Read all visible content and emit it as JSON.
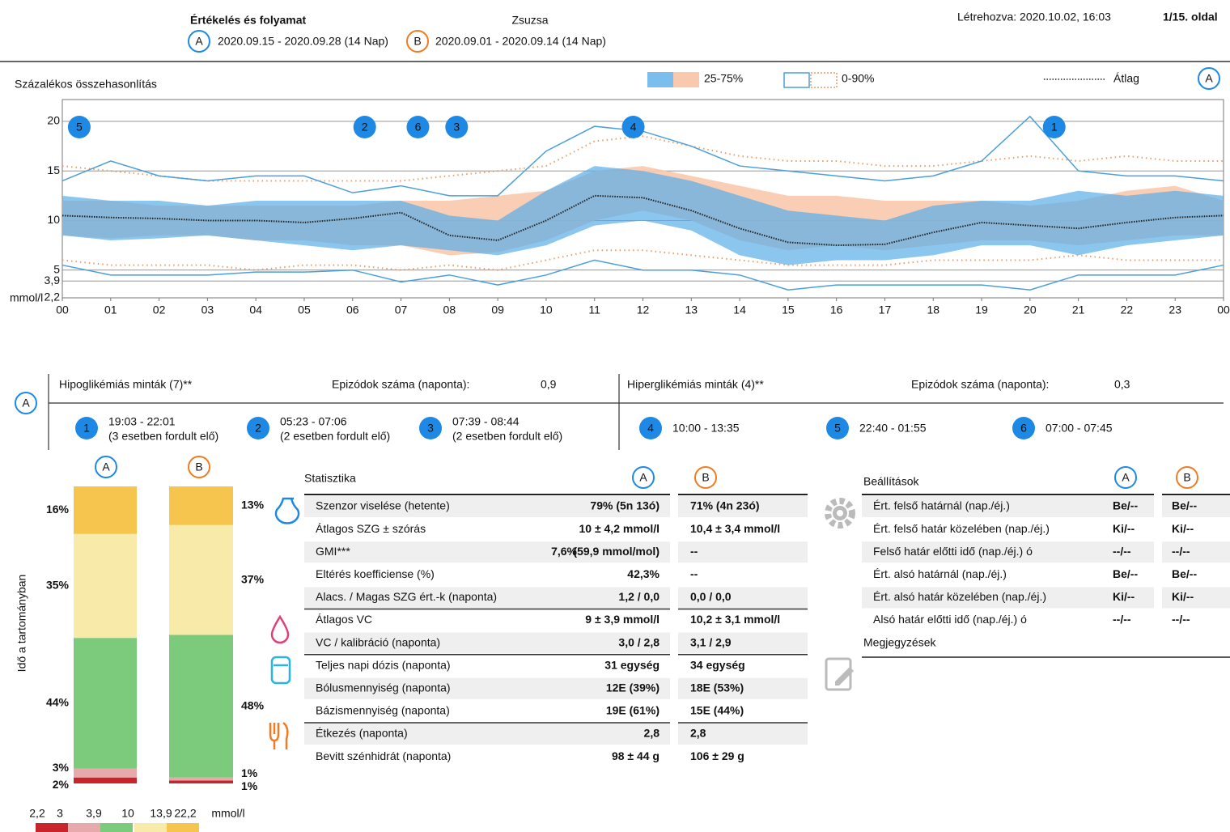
{
  "header": {
    "title": "Értékelés és folyamat",
    "patient": "Zsuzsa",
    "badge_a": "A",
    "badge_b": "B",
    "period_a": "2020.09.15 - 2020.09.28 (14 Nap)",
    "period_b": "2020.09.01 - 2020.09.14 (14 Nap)",
    "created": "Létrehozva: 2020.10.02, 16:03",
    "page": "1/15. oldal"
  },
  "chart": {
    "type": "line",
    "title": "Százalékos összehasonlítás",
    "legend": {
      "band": "25-75%",
      "range": "0-90%",
      "mean": "Átlag"
    },
    "y_unit": "mmol/l",
    "ylim": [
      2.2,
      22.2
    ],
    "yticks": [
      {
        "value": 2.2,
        "label": "2,2"
      },
      {
        "value": 3.9,
        "label": "3,9"
      },
      5,
      10,
      15,
      20
    ],
    "xlim": [
      0,
      24
    ],
    "xticks": [
      {
        "value": 0,
        "label": "00"
      },
      {
        "value": 1,
        "label": "01"
      },
      {
        "value": 2,
        "label": "02"
      },
      {
        "value": 3,
        "label": "03"
      },
      {
        "value": 4,
        "label": "04"
      },
      {
        "value": 5,
        "label": "05"
      },
      {
        "value": 6,
        "label": "06"
      },
      {
        "value": 7,
        "label": "07"
      },
      {
        "value": 8,
        "label": "08"
      },
      {
        "value": 9,
        "label": "09"
      },
      {
        "value": 10,
        "label": "10"
      },
      {
        "value": 11,
        "label": "11"
      },
      {
        "value": 12,
        "label": "12"
      },
      {
        "value": 13,
        "label": "13"
      },
      {
        "value": 14,
        "label": "14"
      },
      {
        "value": 15,
        "label": "15"
      },
      {
        "value": 16,
        "label": "16"
      },
      {
        "value": 17,
        "label": "17"
      },
      {
        "value": 18,
        "label": "18"
      },
      {
        "value": 19,
        "label": "19"
      },
      {
        "value": 20,
        "label": "20"
      },
      {
        "value": 21,
        "label": "21"
      },
      {
        "value": 22,
        "label": "22"
      },
      {
        "value": 23,
        "label": "23"
      },
      {
        "value": 24,
        "label": "00"
      }
    ],
    "hours": [
      0,
      1,
      2,
      3,
      4,
      5,
      6,
      7,
      8,
      9,
      10,
      11,
      12,
      13,
      14,
      15,
      16,
      17,
      18,
      19,
      20,
      21,
      22,
      23,
      24
    ],
    "colors": {
      "a_band": "#5aaee8",
      "b_band": "#f8c9ac",
      "a_line": "#4a9fdb",
      "b_line": "#ee9a66",
      "mean": "#222222"
    },
    "a": {
      "mean": [
        10.5,
        10.3,
        10.2,
        10.0,
        10.0,
        9.8,
        10.2,
        10.8,
        8.5,
        8.0,
        10.0,
        12.5,
        12.3,
        11.0,
        9.2,
        7.8,
        7.5,
        7.6,
        8.8,
        9.8,
        9.5,
        9.2,
        9.8,
        10.3,
        10.5
      ],
      "p25": [
        8.5,
        8.0,
        8.2,
        8.5,
        8.0,
        7.5,
        7.0,
        7.5,
        7.0,
        6.5,
        7.5,
        9.5,
        10.0,
        9.0,
        6.5,
        5.5,
        6.0,
        6.0,
        6.5,
        7.5,
        7.5,
        6.5,
        7.5,
        8.0,
        8.5
      ],
      "p75": [
        12.5,
        12.0,
        12.0,
        11.5,
        12.0,
        12.0,
        12.0,
        12.0,
        10.5,
        10.0,
        13.0,
        15.5,
        15.0,
        14.0,
        12.5,
        11.0,
        10.5,
        10.0,
        11.5,
        12.0,
        12.0,
        13.0,
        12.5,
        13.0,
        12.5
      ],
      "p0": [
        5.5,
        4.5,
        4.5,
        4.5,
        4.8,
        4.8,
        5.0,
        3.8,
        4.5,
        3.5,
        4.5,
        6.0,
        5.0,
        5.0,
        4.5,
        3.0,
        3.5,
        3.5,
        3.5,
        3.5,
        3.0,
        4.5,
        4.5,
        4.5,
        5.5
      ],
      "p90": [
        14.0,
        16.0,
        14.5,
        14.0,
        14.5,
        14.5,
        12.8,
        13.5,
        12.5,
        12.5,
        17.0,
        19.5,
        19.0,
        17.5,
        15.5,
        15.0,
        14.5,
        14.0,
        14.5,
        16.0,
        20.5,
        15.0,
        14.5,
        14.5,
        14.0
      ]
    },
    "b": {
      "p25": [
        8.5,
        8.2,
        8.5,
        8.5,
        8.0,
        8.0,
        7.5,
        7.5,
        6.5,
        6.8,
        8.0,
        10.0,
        11.0,
        10.0,
        8.0,
        7.0,
        7.5,
        7.0,
        7.5,
        8.0,
        8.0,
        7.5,
        8.0,
        8.5,
        8.5
      ],
      "p75": [
        12.0,
        12.0,
        11.5,
        11.5,
        11.5,
        11.5,
        11.5,
        12.0,
        12.0,
        12.5,
        13.0,
        15.0,
        15.5,
        14.5,
        13.5,
        12.5,
        12.5,
        12.0,
        12.0,
        12.0,
        11.5,
        12.0,
        13.0,
        13.5,
        12.0
      ],
      "p0": [
        6.0,
        5.5,
        5.5,
        5.5,
        5.0,
        5.5,
        5.5,
        5.0,
        5.5,
        5.0,
        6.0,
        7.0,
        7.0,
        6.5,
        6.0,
        5.5,
        5.5,
        5.5,
        6.0,
        6.0,
        6.0,
        6.5,
        6.0,
        6.0,
        6.0
      ],
      "p90": [
        15.5,
        15.0,
        14.5,
        14.0,
        14.0,
        14.0,
        14.0,
        14.0,
        14.5,
        15.0,
        15.5,
        18.0,
        18.5,
        17.5,
        16.5,
        16.0,
        16.0,
        15.5,
        15.5,
        16.0,
        16.5,
        16.0,
        16.5,
        16.0,
        16.0
      ]
    },
    "markers": [
      {
        "label": "5",
        "x": 0.35
      },
      {
        "label": "2",
        "x": 6.25
      },
      {
        "label": "6",
        "x": 7.35
      },
      {
        "label": "3",
        "x": 8.15
      },
      {
        "label": "4",
        "x": 11.8
      },
      {
        "label": "1",
        "x": 20.5
      }
    ]
  },
  "patterns": {
    "hypo": {
      "title": "Hipoglikémiás minták (7)**",
      "count_label": "Epizódok száma (naponta):",
      "count": "0,9",
      "items": [
        {
          "n": "1",
          "time": "19:03 - 22:01",
          "note": "(3 esetben fordult elő)"
        },
        {
          "n": "2",
          "time": "05:23 - 07:06",
          "note": "(2 esetben fordult elő)"
        },
        {
          "n": "3",
          "time": "07:39 - 08:44",
          "note": "(2 esetben fordult elő)"
        }
      ]
    },
    "hyper": {
      "title": "Hiperglikémiás minták (4)**",
      "count_label": "Epizódok száma (naponta):",
      "count": "0,3",
      "items": [
        {
          "n": "4",
          "time": "10:00 - 13:35"
        },
        {
          "n": "5",
          "time": "22:40 - 01:55"
        },
        {
          "n": "6",
          "time": "07:00 - 07:45"
        }
      ]
    }
  },
  "tir": {
    "type": "stacked-bar",
    "y_label": "Idő a tartományban",
    "colors": [
      "#c9232b",
      "#e8a9ad",
      "#7ccb7c",
      "#f8eaa8",
      "#f5c54e"
    ],
    "a": {
      "values": [
        2,
        3,
        44,
        35,
        16
      ],
      "value_labels": [
        "2%",
        "3%",
        "44%",
        "35%",
        "16%"
      ]
    },
    "b": {
      "values": [
        1,
        1,
        48,
        37,
        13
      ],
      "value_labels": [
        "1%",
        "1%",
        "48%",
        "37%",
        "13%"
      ]
    },
    "legend_labels": [
      "2,2",
      "3",
      "3,9",
      "10",
      "13,9",
      "22,2",
      "mmol/l"
    ],
    "legend_colors": [
      "#c9232b",
      "#c9232b",
      "#6cc06c",
      "#6cc06c",
      "#f0c040",
      "#f0c040",
      "#f0c040"
    ]
  },
  "stats": {
    "title": "Statisztika",
    "rows": [
      {
        "label": "Szenzor viselése (hetente)",
        "a": "79% (5n 13ó)",
        "b": "71% (4n 23ó)"
      },
      {
        "label": "Átlagos SZG ± szórás",
        "a": "10 ± 4,2 mmol/l",
        "b": "10,4 ± 3,4 mmol/l"
      },
      {
        "label": "GMI***",
        "a": "7,6%",
        "a_sub": "(59,9 mmol/mol)",
        "b": "--"
      },
      {
        "label": "Eltérés koefficiense (%)",
        "a": "42,3%",
        "b": "--"
      },
      {
        "label": "Alacs. / Magas SZG ért.-k (naponta)",
        "a": "1,2 / 0,0",
        "b": "0,0 / 0,0"
      },
      {
        "label": "Átlagos VC",
        "a": "9 ± 3,9 mmol/l",
        "b": "10,2 ± 3,1 mmol/l"
      },
      {
        "label": "VC / kalibráció (naponta)",
        "a": "3,0 / 2,8",
        "b": "3,1 / 2,9"
      },
      {
        "label": "Teljes napi dózis (naponta)",
        "a": "31 egység",
        "b": "34 egység"
      },
      {
        "label": "Bólusmennyiség (naponta)",
        "a": "12E (39%)",
        "b": "18E (53%)"
      },
      {
        "label": "Bázismennyiség (naponta)",
        "a": "19E (61%)",
        "b": "15E (44%)"
      },
      {
        "label": "Étkezés (naponta)",
        "a": "2,8",
        "b": "2,8"
      },
      {
        "label": "Bevitt szénhidrát (naponta)",
        "a": "98 ± 44 g",
        "b": "106 ± 29 g"
      }
    ]
  },
  "settings": {
    "title": "Beállítások",
    "rows": [
      {
        "label": "Ért. felső határnál (nap./éj.)",
        "a": "Be/--",
        "b": "Be/--"
      },
      {
        "label": "Ért. felső határ közelében (nap./éj.)",
        "a": "Ki/--",
        "b": "Ki/--"
      },
      {
        "label": "Felső határ előtti idő (nap./éj.) ó",
        "a": "--/--",
        "b": "--/--"
      },
      {
        "label": "Ért. alsó határnál (nap./éj.)",
        "a": "Be/--",
        "b": "Be/--"
      },
      {
        "label": "Ért. alsó határ közelében (nap./éj.)",
        "a": "Ki/--",
        "b": "Ki/--"
      },
      {
        "label": "Alsó határ előtti idő (nap./éj.) ó",
        "a": "--/--",
        "b": "--/--"
      }
    ],
    "notes_title": "Megjegyzések"
  }
}
